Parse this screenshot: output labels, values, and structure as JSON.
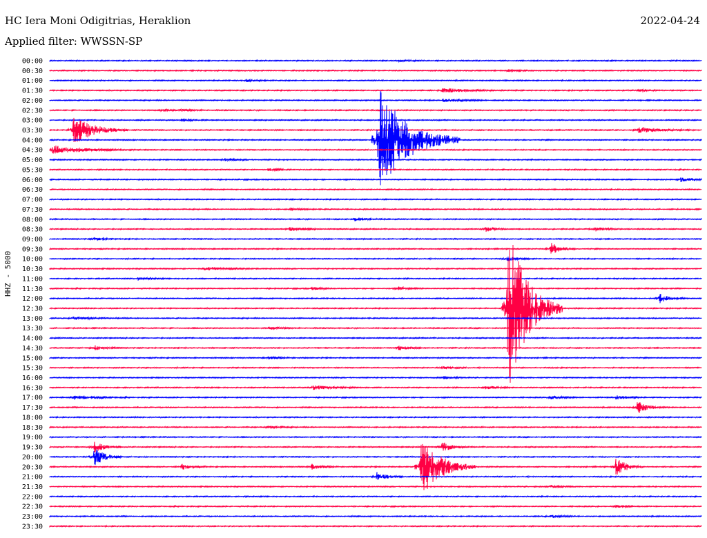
{
  "header": {
    "station": "HC Iera Moni Odigitrias, Heraklion",
    "date": "2022-04-24",
    "filter": "Applied filter: WWSSN-SP"
  },
  "chart_data": {
    "type": "line",
    "ylabel": "HHZ - 5000",
    "colors": [
      "#0000ff",
      "#ff0044"
    ],
    "rows": [
      "00:00",
      "00:30",
      "01:00",
      "01:30",
      "02:00",
      "02:30",
      "03:00",
      "03:30",
      "04:00",
      "04:30",
      "05:00",
      "05:30",
      "06:00",
      "06:30",
      "07:00",
      "07:30",
      "08:00",
      "08:30",
      "09:00",
      "09:30",
      "10:00",
      "10:30",
      "11:00",
      "11:30",
      "12:00",
      "12:30",
      "13:00",
      "13:30",
      "14:00",
      "14:30",
      "15:00",
      "15:30",
      "16:00",
      "16:30",
      "17:00",
      "17:30",
      "18:00",
      "18:30",
      "19:00",
      "19:30",
      "20:00",
      "20:30",
      "21:00",
      "21:30",
      "22:00",
      "22:30",
      "23:00",
      "23:30"
    ],
    "events": [
      {
        "row": 0,
        "minute": 16,
        "amp": 0.2,
        "dur": 1
      },
      {
        "row": 1,
        "minute": 21,
        "amp": 0.25,
        "dur": 1
      },
      {
        "row": 2,
        "minute": 9,
        "amp": 0.3,
        "dur": 1
      },
      {
        "row": 3,
        "minute": 18,
        "amp": 0.6,
        "dur": 2
      },
      {
        "row": 3,
        "minute": 27,
        "amp": 0.25,
        "dur": 1
      },
      {
        "row": 4,
        "minute": 18,
        "amp": 0.3,
        "dur": 2
      },
      {
        "row": 5,
        "minute": 5,
        "amp": 0.25,
        "dur": 1
      },
      {
        "row": 5,
        "minute": 6,
        "amp": 0.2,
        "dur": 1
      },
      {
        "row": 6,
        "minute": 6,
        "amp": 0.25,
        "dur": 1
      },
      {
        "row": 7,
        "minute": 1,
        "amp": 3.2,
        "dur": 2
      },
      {
        "row": 7,
        "minute": 27,
        "amp": 0.7,
        "dur": 2
      },
      {
        "row": 8,
        "minute": 15,
        "amp": 11,
        "dur": 3
      },
      {
        "row": 9,
        "minute": 0,
        "amp": 0.9,
        "dur": 3
      },
      {
        "row": 10,
        "minute": 8,
        "amp": 0.3,
        "dur": 1
      },
      {
        "row": 11,
        "minute": 10,
        "amp": 0.25,
        "dur": 1
      },
      {
        "row": 12,
        "minute": 29,
        "amp": 0.6,
        "dur": 1
      },
      {
        "row": 15,
        "minute": 11,
        "amp": 0.25,
        "dur": 1
      },
      {
        "row": 16,
        "minute": 14,
        "amp": 0.5,
        "dur": 1
      },
      {
        "row": 17,
        "minute": 11,
        "amp": 0.6,
        "dur": 1
      },
      {
        "row": 17,
        "minute": 20,
        "amp": 0.5,
        "dur": 1
      },
      {
        "row": 17,
        "minute": 25,
        "amp": 0.5,
        "dur": 1
      },
      {
        "row": 18,
        "minute": 2,
        "amp": 0.3,
        "dur": 1
      },
      {
        "row": 19,
        "minute": 23,
        "amp": 1.4,
        "dur": 1
      },
      {
        "row": 20,
        "minute": 21,
        "amp": 0.5,
        "dur": 1
      },
      {
        "row": 21,
        "minute": 7,
        "amp": 0.3,
        "dur": 2
      },
      {
        "row": 22,
        "minute": 4,
        "amp": 0.3,
        "dur": 1
      },
      {
        "row": 23,
        "minute": 12,
        "amp": 0.3,
        "dur": 1
      },
      {
        "row": 23,
        "minute": 16,
        "amp": 0.3,
        "dur": 1
      },
      {
        "row": 24,
        "minute": 28,
        "amp": 1.0,
        "dur": 1
      },
      {
        "row": 25,
        "minute": 21,
        "amp": 18,
        "dur": 2
      },
      {
        "row": 26,
        "minute": 1,
        "amp": 0.3,
        "dur": 2
      },
      {
        "row": 27,
        "minute": 10,
        "amp": 0.3,
        "dur": 1
      },
      {
        "row": 29,
        "minute": 2,
        "amp": 0.5,
        "dur": 1
      },
      {
        "row": 29,
        "minute": 16,
        "amp": 0.5,
        "dur": 1
      },
      {
        "row": 30,
        "minute": 10,
        "amp": 0.3,
        "dur": 1
      },
      {
        "row": 31,
        "minute": 18,
        "amp": 0.3,
        "dur": 1
      },
      {
        "row": 32,
        "minute": 18,
        "amp": 0.3,
        "dur": 1
      },
      {
        "row": 33,
        "minute": 12,
        "amp": 0.5,
        "dur": 2
      },
      {
        "row": 33,
        "minute": 20,
        "amp": 0.4,
        "dur": 1
      },
      {
        "row": 34,
        "minute": 1,
        "amp": 0.4,
        "dur": 2
      },
      {
        "row": 34,
        "minute": 23,
        "amp": 0.4,
        "dur": 1
      },
      {
        "row": 34,
        "minute": 26,
        "amp": 0.5,
        "dur": 1
      },
      {
        "row": 35,
        "minute": 27,
        "amp": 1.4,
        "dur": 1
      },
      {
        "row": 37,
        "minute": 10,
        "amp": 0.3,
        "dur": 1
      },
      {
        "row": 39,
        "minute": 2,
        "amp": 1.2,
        "dur": 1
      },
      {
        "row": 39,
        "minute": 18,
        "amp": 1.1,
        "dur": 1
      },
      {
        "row": 40,
        "minute": 2,
        "amp": 2.2,
        "dur": 1
      },
      {
        "row": 41,
        "minute": 17,
        "amp": 6.5,
        "dur": 2
      },
      {
        "row": 41,
        "minute": 6,
        "amp": 0.6,
        "dur": 1
      },
      {
        "row": 41,
        "minute": 12,
        "amp": 0.6,
        "dur": 1
      },
      {
        "row": 41,
        "minute": 26,
        "amp": 2.2,
        "dur": 1
      },
      {
        "row": 42,
        "minute": 15,
        "amp": 1.0,
        "dur": 1
      },
      {
        "row": 43,
        "minute": 23,
        "amp": 0.3,
        "dur": 1
      },
      {
        "row": 45,
        "minute": 26,
        "amp": 0.3,
        "dur": 1
      },
      {
        "row": 46,
        "minute": 23,
        "amp": 0.3,
        "dur": 1
      }
    ]
  }
}
